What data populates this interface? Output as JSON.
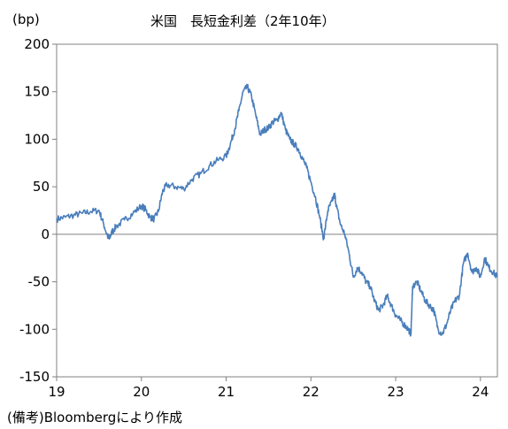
{
  "chart_data": {
    "type": "line",
    "title": "米国　長短金利差（2年10年）",
    "ylabel": "(bp)",
    "xlabel": "",
    "note": "(備考)Bloombergにより作成",
    "ylim": [
      -150,
      200
    ],
    "yticks": [
      200,
      150,
      100,
      50,
      0,
      -50,
      -100,
      -150
    ],
    "xlim": [
      2019.0,
      2024.2
    ],
    "xticks": [
      {
        "value": 2019,
        "label": "19"
      },
      {
        "value": 2020,
        "label": "20"
      },
      {
        "value": 2021,
        "label": "21"
      },
      {
        "value": 2022,
        "label": "22"
      },
      {
        "value": 2023,
        "label": "23"
      },
      {
        "value": 2024,
        "label": "24"
      }
    ],
    "zero_line": true,
    "grid": false,
    "series": [
      {
        "color": "#4a7ebb",
        "x": [
          2019.0,
          2019.1,
          2019.2,
          2019.3,
          2019.4,
          2019.5,
          2019.55,
          2019.6,
          2019.62,
          2019.65,
          2019.7,
          2019.8,
          2019.9,
          2020.0,
          2020.05,
          2020.1,
          2020.15,
          2020.2,
          2020.25,
          2020.3,
          2020.4,
          2020.5,
          2020.6,
          2020.7,
          2020.8,
          2020.9,
          2021.0,
          2021.05,
          2021.1,
          2021.15,
          2021.2,
          2021.25,
          2021.3,
          2021.35,
          2021.4,
          2021.45,
          2021.5,
          2021.55,
          2021.6,
          2021.65,
          2021.7,
          2021.75,
          2021.8,
          2021.85,
          2021.9,
          2021.95,
          2022.0,
          2022.05,
          2022.1,
          2022.15,
          2022.2,
          2022.25,
          2022.28,
          2022.3,
          2022.35,
          2022.4,
          2022.45,
          2022.5,
          2022.55,
          2022.6,
          2022.65,
          2022.7,
          2022.75,
          2022.8,
          2022.85,
          2022.9,
          2022.95,
          2023.0,
          2023.05,
          2023.1,
          2023.15,
          2023.18,
          2023.2,
          2023.25,
          2023.3,
          2023.35,
          2023.4,
          2023.45,
          2023.5,
          2023.55,
          2023.6,
          2023.65,
          2023.7,
          2023.75,
          2023.8,
          2023.85,
          2023.9,
          2023.95,
          2024.0,
          2024.05,
          2024.1,
          2024.15,
          2024.2
        ],
        "values": [
          16,
          18,
          20,
          22,
          24,
          25,
          12,
          -2,
          -5,
          2,
          8,
          15,
          22,
          30,
          26,
          18,
          16,
          24,
          45,
          52,
          50,
          48,
          58,
          64,
          72,
          78,
          82,
          95,
          110,
          130,
          150,
          155,
          145,
          125,
          105,
          110,
          112,
          118,
          120,
          128,
          110,
          100,
          95,
          90,
          80,
          70,
          55,
          40,
          20,
          -5,
          25,
          35,
          42,
          30,
          10,
          0,
          -20,
          -45,
          -35,
          -40,
          -50,
          -55,
          -70,
          -80,
          -75,
          -65,
          -75,
          -85,
          -90,
          -95,
          -100,
          -105,
          -55,
          -50,
          -60,
          -70,
          -75,
          -80,
          -100,
          -105,
          -95,
          -80,
          -70,
          -65,
          -30,
          -20,
          -40,
          -35,
          -45,
          -25,
          -35,
          -40,
          -45
        ]
      }
    ]
  }
}
